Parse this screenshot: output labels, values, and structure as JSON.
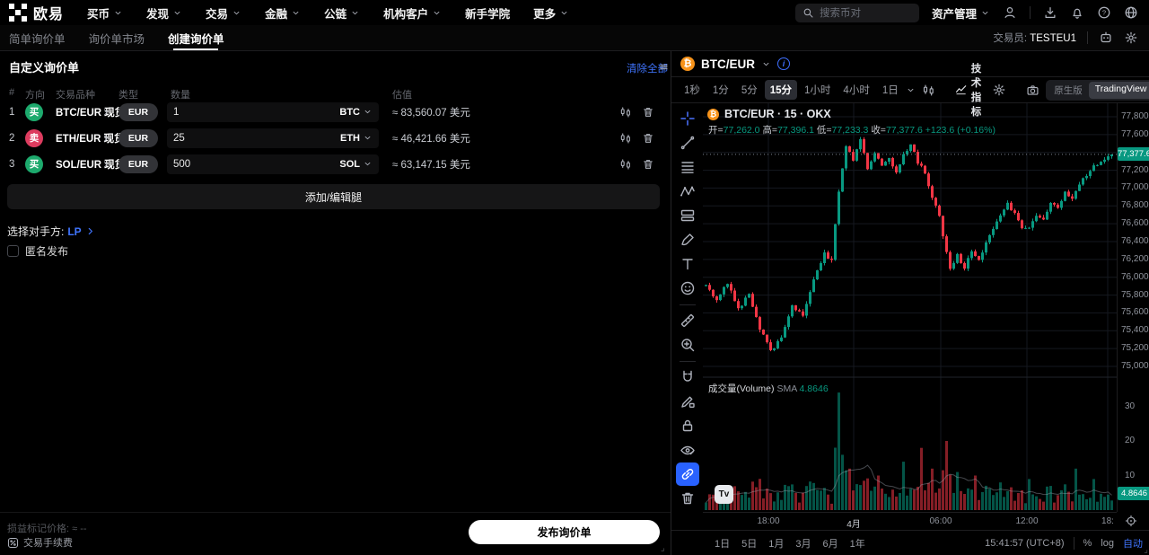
{
  "topnav": {
    "logo_text": "欧易",
    "menu": [
      {
        "label": "买币",
        "dropdown": true
      },
      {
        "label": "发现",
        "dropdown": true
      },
      {
        "label": "交易",
        "dropdown": true
      },
      {
        "label": "金融",
        "dropdown": true
      },
      {
        "label": "公链",
        "dropdown": true
      },
      {
        "label": "机构客户",
        "dropdown": true
      },
      {
        "label": "新手学院",
        "dropdown": false
      },
      {
        "label": "更多",
        "dropdown": true
      }
    ],
    "search_placeholder": "搜索币对",
    "assets_label": "资产管理"
  },
  "subnav": {
    "tabs": [
      "简单询价单",
      "询价单市场",
      "创建询价单"
    ],
    "active_index": 2,
    "trader_label": "交易员:",
    "trader_name": "TESTEU1"
  },
  "rfq": {
    "title": "自定义询价单",
    "clear_all": "清除全部",
    "columns": {
      "index": "#",
      "direction": "方向",
      "instrument": "交易品种",
      "type": "类型",
      "amount": "数量",
      "value": "估值"
    },
    "legs": [
      {
        "index": "1",
        "side": "buy",
        "direction": "买",
        "pair": "BTC/EUR 现货",
        "type": "EUR",
        "amount": "1",
        "currency": "BTC",
        "value": "≈ 83,560.07 美元"
      },
      {
        "index": "2",
        "side": "sell",
        "direction": "卖",
        "pair": "ETH/EUR 现货",
        "type": "EUR",
        "amount": "25",
        "currency": "ETH",
        "value": "≈ 46,421.66 美元"
      },
      {
        "index": "3",
        "side": "buy",
        "direction": "买",
        "pair": "SOL/EUR 现货",
        "type": "EUR",
        "amount": "500",
        "currency": "SOL",
        "value": "≈ 63,147.15 美元"
      }
    ],
    "add_leg_button": "添加/编辑腿",
    "counterparty_label": "选择对手方:",
    "counterparty_value": "LP",
    "anonymous_label": "匿名发布",
    "mark_price_line": "损益标记价格: ≈ --",
    "fee_label": "交易手续费",
    "publish_button": "发布询价单"
  },
  "chart_header": {
    "pair": "BTC/EUR"
  },
  "chart_toolbar": {
    "timeframes": [
      "1秒",
      "1分",
      "5分",
      "15分",
      "1小时",
      "4小时",
      "1日"
    ],
    "active_timeframe": "15分",
    "indicators_label": "技术指标",
    "native_label": "原生版",
    "tradingview_label": "TradingView"
  },
  "chart_data": {
    "type": "candlestick",
    "symbol_line": "BTC/EUR · 15 · OKX",
    "legend": {
      "items": [
        {
          "k": "开=",
          "v": "77,262.0"
        },
        {
          "k": "高=",
          "v": "77,396.1"
        },
        {
          "k": "低=",
          "v": "77,233.3"
        },
        {
          "k": "收=",
          "v": "77,377.6"
        }
      ],
      "change": "+123.6 (+0.16%)"
    },
    "price_axis": {
      "labels": [
        "77,800.0",
        "77,600.0",
        "77,400.0",
        "77,200.0",
        "77,000.0",
        "76,800.0",
        "76,600.0",
        "76,400.0",
        "76,200.0",
        "76,000.0",
        "75,800.0",
        "75,600.0",
        "75,400.0",
        "75,200.0",
        "75,000.0"
      ],
      "min": 75000,
      "max": 77800,
      "step": 200
    },
    "last_price": 77377.6,
    "last_price_label": "77,377.6",
    "volume": {
      "label": "成交量(Volume)",
      "sma_label": "SMA",
      "sma_value": "4.8646",
      "axis": [
        30,
        20,
        10
      ],
      "badge": "4.8646"
    },
    "time_labels": [
      "18:00",
      "4月",
      "06:00",
      "12:00",
      "18:"
    ],
    "footer_ranges": [
      "1日",
      "5日",
      "1月",
      "3月",
      "6月",
      "1年"
    ],
    "clock": "15:41:57 (UTC+8)",
    "scale_percent": "%",
    "scale_log": "log",
    "scale_auto": "自动",
    "colors": {
      "up": "#089981",
      "down": "#f23645"
    },
    "candle_count": 114,
    "seed": 7,
    "waypoints": [
      [
        0,
        75900
      ],
      [
        3,
        75760
      ],
      [
        6,
        75940
      ],
      [
        9,
        75640
      ],
      [
        12,
        75820
      ],
      [
        15,
        75420
      ],
      [
        18,
        75170
      ],
      [
        21,
        75320
      ],
      [
        24,
        75680
      ],
      [
        27,
        75580
      ],
      [
        30,
        75980
      ],
      [
        33,
        76280
      ],
      [
        35,
        76180
      ],
      [
        37,
        76980
      ],
      [
        39,
        77480
      ],
      [
        41,
        77300
      ],
      [
        43,
        77560
      ],
      [
        45,
        77210
      ],
      [
        47,
        77400
      ],
      [
        49,
        77260
      ],
      [
        51,
        77340
      ],
      [
        53,
        77160
      ],
      [
        55,
        77380
      ],
      [
        57,
        77490
      ],
      [
        59,
        77290
      ],
      [
        61,
        77180
      ],
      [
        63,
        76890
      ],
      [
        65,
        76680
      ],
      [
        67,
        76280
      ],
      [
        68,
        76090
      ],
      [
        70,
        76240
      ],
      [
        72,
        76110
      ],
      [
        74,
        76290
      ],
      [
        76,
        76200
      ],
      [
        78,
        76390
      ],
      [
        80,
        76540
      ],
      [
        82,
        76690
      ],
      [
        84,
        76840
      ],
      [
        86,
        76700
      ],
      [
        88,
        76560
      ],
      [
        90,
        76540
      ],
      [
        92,
        76690
      ],
      [
        94,
        76640
      ],
      [
        96,
        76840
      ],
      [
        98,
        76770
      ],
      [
        100,
        76940
      ],
      [
        102,
        76890
      ],
      [
        104,
        77040
      ],
      [
        106,
        77140
      ],
      [
        108,
        77240
      ],
      [
        110,
        77300
      ],
      [
        113,
        77377.6
      ]
    ],
    "volume_spikes": {
      "37": 34,
      "38": 16,
      "40": 12,
      "48": 10,
      "55": 14,
      "60": 18,
      "63": 12,
      "67": 20,
      "70": 11,
      "75": 10,
      "82": 8,
      "90": 9,
      "96": 7,
      "103": 12,
      "108": 9
    },
    "vline_x": [
      73,
      168,
      265,
      361,
      451
    ]
  }
}
